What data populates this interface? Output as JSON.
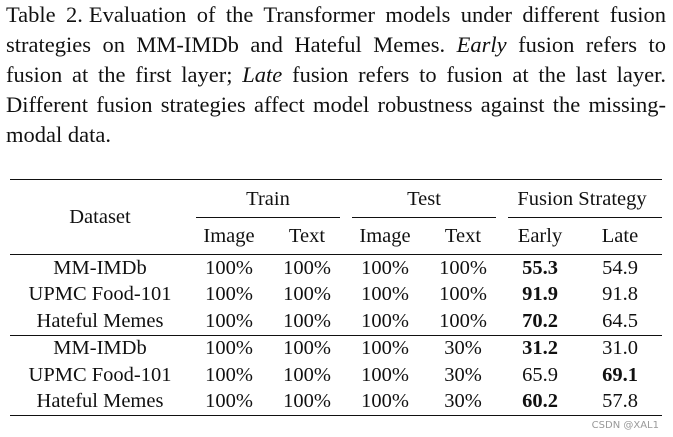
{
  "caption": [
    "Table 2.",
    "Evaluation of the Transformer models under different fusion strategies on MM-IMDb and Hateful Memes. ",
    "Early",
    " fusion refers to fusion at the first layer; ",
    "Late",
    " fusion refers to fusion at the last layer. Different fusion strategies affect model robustness against the missing-modal data."
  ],
  "table": {
    "header": {
      "dataset": "Dataset",
      "groups": [
        "Train",
        "Test",
        "Fusion Strategy"
      ],
      "columns": [
        "Image",
        "Text",
        "Image",
        "Text",
        "Early",
        "Late"
      ]
    },
    "blocks": [
      [
        [
          "MM-IMDb",
          "100%",
          "100%",
          "100%",
          "100%",
          "55.3",
          "54.9"
        ],
        [
          "UPMC Food-101",
          "100%",
          "100%",
          "100%",
          "100%",
          "91.9",
          "91.8"
        ],
        [
          "Hateful Memes",
          "100%",
          "100%",
          "100%",
          "100%",
          "70.2",
          "64.5"
        ]
      ],
      [
        [
          "MM-IMDb",
          "100%",
          "100%",
          "100%",
          "30%",
          "31.2",
          "31.0"
        ],
        [
          "UPMC Food-101",
          "100%",
          "100%",
          "100%",
          "30%",
          "65.9",
          "69.1"
        ],
        [
          "Hateful Memes",
          "100%",
          "100%",
          "100%",
          "30%",
          "60.2",
          "57.8"
        ]
      ]
    ]
  },
  "watermark": "CSDN @XAL1"
}
